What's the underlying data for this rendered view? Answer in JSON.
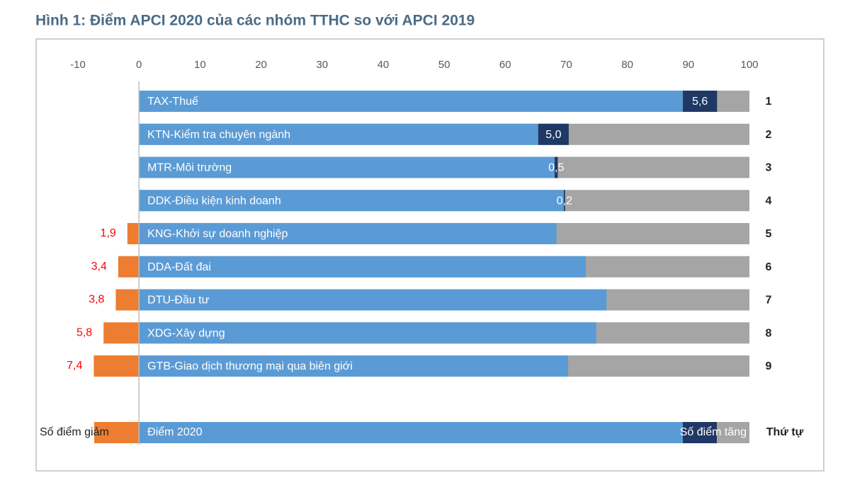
{
  "chart_data": {
    "type": "bar",
    "title": "Hình 1: Điểm APCI 2020 của các nhóm TTHC so với APCI 2019",
    "categories": [
      "TAX-Thuế",
      "KTN-Kiểm tra chuyên ngành",
      "MTR-Môi trường",
      "DDK-Điều kiện kinh doanh",
      "KNG-Khởi sự doanh nghiệp",
      "DDA-Đất đai",
      "DTU-Đầu tư",
      "XDG-Xây dựng",
      "GTB-Giao dịch thương mại qua biên giới"
    ],
    "ranks": [
      1,
      2,
      3,
      4,
      5,
      6,
      7,
      8,
      9
    ],
    "rank_header": "Thứ tự",
    "series": [
      {
        "name": "Điểm 2020",
        "color": "#5b9bd5",
        "values": [
          89.1,
          65.4,
          68.1,
          69.6,
          68.4,
          73.2,
          76.6,
          74.9,
          70.3
        ]
      },
      {
        "name": "Số điểm tăng",
        "color": "#1f3864",
        "values": [
          5.6,
          5.0,
          0.5,
          0.2,
          null,
          null,
          null,
          null,
          null
        ],
        "value_labels": [
          "5,6",
          "5,0",
          "0,5",
          "0,2",
          null,
          null,
          null,
          null,
          null
        ]
      },
      {
        "name": "Số điểm giảm",
        "color": "#ed7d31",
        "values": [
          null,
          null,
          null,
          null,
          -1.9,
          -3.4,
          -3.8,
          -5.8,
          -7.4
        ],
        "value_labels": [
          null,
          null,
          null,
          null,
          "1,9",
          "3,4",
          "3,8",
          "5,8",
          "7,4"
        ]
      }
    ],
    "track_color": "#a5a5a5",
    "xlim": [
      -10,
      100
    ],
    "xticks": [
      -10,
      0,
      10,
      20,
      30,
      40,
      50,
      60,
      70,
      80,
      90,
      100
    ]
  }
}
